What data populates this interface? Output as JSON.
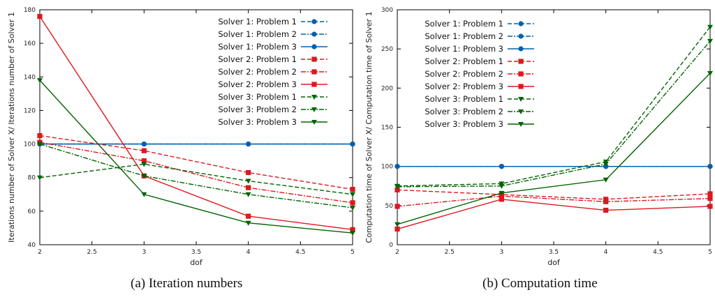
{
  "chart_data": [
    {
      "type": "line",
      "caption": "(a) Iteration numbers",
      "xlabel": "dof",
      "ylabel": "Iterations number of Solver X/ Iterations number of Solver 1",
      "xlim": [
        2,
        5
      ],
      "ylim": [
        40,
        180
      ],
      "xticks": [
        "2",
        "2.5",
        "3",
        "3.5",
        "4",
        "4.5",
        "5"
      ],
      "yticks": [
        "40",
        "60",
        "80",
        "100",
        "120",
        "140",
        "160",
        "180"
      ],
      "grid": false,
      "legend_position": "top-right",
      "x": [
        2,
        3,
        4,
        5
      ],
      "series": [
        {
          "name": "Solver 1: Problem 1",
          "values": [
            100,
            100,
            100,
            100
          ],
          "color": "#0060ad",
          "dash": "6,3",
          "marker": "circle"
        },
        {
          "name": "Solver 1: Problem 2",
          "values": [
            100,
            100,
            100,
            100
          ],
          "color": "#0060ad",
          "dash": "7,2,2,2",
          "marker": "circle"
        },
        {
          "name": "Solver 1: Problem 3",
          "values": [
            100,
            100,
            100,
            100
          ],
          "color": "#0060ad",
          "dash": "",
          "marker": "circle"
        },
        {
          "name": "Solver 2: Problem 1",
          "values": [
            105,
            96,
            83,
            73
          ],
          "color": "#dd181f",
          "dash": "6,3",
          "marker": "square"
        },
        {
          "name": "Solver 2: Problem 2",
          "values": [
            101,
            90,
            74,
            65
          ],
          "color": "#dd181f",
          "dash": "7,2,2,2",
          "marker": "square"
        },
        {
          "name": "Solver 2: Problem 3",
          "values": [
            176,
            81,
            57,
            49
          ],
          "color": "#dd181f",
          "dash": "",
          "marker": "square"
        },
        {
          "name": "Solver 3: Problem 1",
          "values": [
            80,
            88,
            78,
            70
          ],
          "color": "#006400",
          "dash": "6,3",
          "marker": "triangle"
        },
        {
          "name": "Solver 3: Problem 2",
          "values": [
            100,
            81,
            70,
            62
          ],
          "color": "#006400",
          "dash": "7,2,2,2",
          "marker": "triangle"
        },
        {
          "name": "Solver 3: Problem 3",
          "values": [
            138,
            70,
            53,
            47
          ],
          "color": "#006400",
          "dash": "",
          "marker": "triangle"
        }
      ]
    },
    {
      "type": "line",
      "caption": "(b) Computation time",
      "xlabel": "dof",
      "ylabel": "Computation time of Solver X/ Computation time of Solver 1",
      "xlim": [
        2,
        5
      ],
      "ylim": [
        0,
        300
      ],
      "xticks": [
        "2",
        "2.5",
        "3",
        "3.5",
        "4",
        "4.5",
        "5"
      ],
      "yticks": [
        "0",
        "50",
        "100",
        "150",
        "200",
        "250",
        "300"
      ],
      "grid": false,
      "legend_position": "top-left",
      "x": [
        2,
        3,
        4,
        5
      ],
      "series": [
        {
          "name": "Solver 1: Problem 1",
          "values": [
            100,
            100,
            100,
            100
          ],
          "color": "#0060ad",
          "dash": "6,3",
          "marker": "circle"
        },
        {
          "name": "Solver 1: Problem 2",
          "values": [
            100,
            100,
            100,
            100
          ],
          "color": "#0060ad",
          "dash": "7,2,2,2",
          "marker": "circle"
        },
        {
          "name": "Solver 1: Problem 3",
          "values": [
            100,
            100,
            100,
            100
          ],
          "color": "#0060ad",
          "dash": "",
          "marker": "circle"
        },
        {
          "name": "Solver 2: Problem 1",
          "values": [
            70,
            64,
            58,
            65
          ],
          "color": "#dd181f",
          "dash": "6,3",
          "marker": "square"
        },
        {
          "name": "Solver 2: Problem 2",
          "values": [
            49,
            62,
            55,
            59
          ],
          "color": "#dd181f",
          "dash": "7,2,2,2",
          "marker": "square"
        },
        {
          "name": "Solver 2: Problem 3",
          "values": [
            20,
            58,
            44,
            49
          ],
          "color": "#dd181f",
          "dash": "",
          "marker": "square"
        },
        {
          "name": "Solver 3: Problem 1",
          "values": [
            75,
            78,
            106,
            278
          ],
          "color": "#006400",
          "dash": "6,3",
          "marker": "triangle"
        },
        {
          "name": "Solver 3: Problem 2",
          "values": [
            74,
            75,
            103,
            260
          ],
          "color": "#006400",
          "dash": "7,2,2,2",
          "marker": "triangle"
        },
        {
          "name": "Solver 3: Problem 3",
          "values": [
            26,
            66,
            83,
            219
          ],
          "color": "#006400",
          "dash": "",
          "marker": "triangle"
        }
      ]
    }
  ]
}
